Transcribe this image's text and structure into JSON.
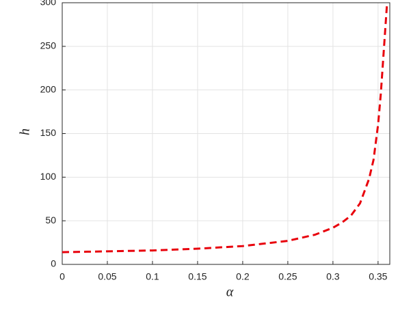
{
  "chart_data": {
    "type": "line",
    "x_label": "α",
    "y_label": "h",
    "x": [
      0,
      0.05,
      0.1,
      0.15,
      0.2,
      0.25,
      0.28,
      0.3,
      0.31,
      0.32,
      0.33,
      0.34,
      0.345,
      0.35,
      0.353,
      0.356,
      0.358,
      0.36
    ],
    "series": [
      {
        "name": "h",
        "color": "#e8000b",
        "values": [
          14,
          15,
          16,
          18,
          21,
          27,
          34,
          42,
          48,
          56,
          70,
          98,
          120,
          160,
          195,
          240,
          270,
          300
        ]
      }
    ],
    "xlim": [
      0,
      0.363
    ],
    "ylim": [
      0,
      300
    ],
    "xticks": [
      0,
      0.05,
      0.1,
      0.15,
      0.2,
      0.25,
      0.3,
      0.35
    ],
    "yticks": [
      0,
      50,
      100,
      150,
      200,
      250,
      300
    ],
    "grid": true
  }
}
